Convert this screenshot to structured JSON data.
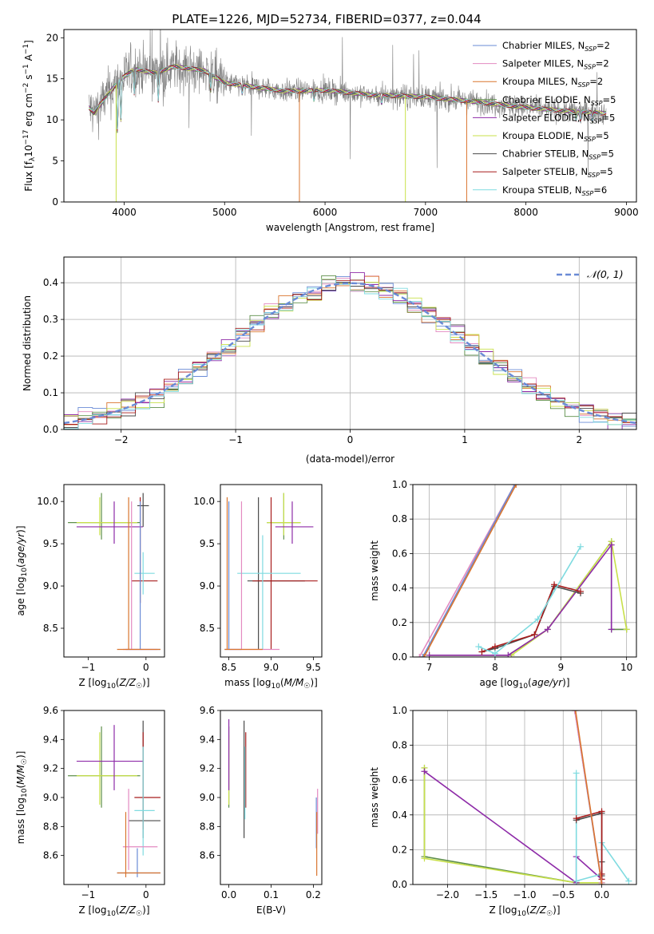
{
  "title": "PLATE=1226, MJD=52734, FIBERID=0377, z=0.044",
  "colors": {
    "Chabrier MILES": "#6a8bd6",
    "Salpeter MILES": "#e38ac0",
    "Kroupa MILES": "#d9752f",
    "Chabrier ELODIE": "#5e8f4a",
    "Salpeter ELODIE": "#8e2ba8",
    "Kroupa ELODIE": "#c8e04a",
    "Chabrier STELIB": "#4a4a4a",
    "Salpeter STELIB": "#a81c1c",
    "Kroupa STELIB": "#7fdbe0",
    "data": "#808080",
    "normal": "#6a8bd6"
  },
  "chart_data": [
    {
      "type": "line",
      "title": "PLATE=1226, MJD=52734, FIBERID=0377, z=0.044",
      "xlabel": "wavelength [Angstrom, rest frame]",
      "ylabel": "Flux [f_λ 10^-17 erg cm^-2 s^-1 A^-1]",
      "xlim": [
        3400,
        9100
      ],
      "ylim": [
        0,
        21
      ],
      "xticks": [
        "4000",
        "5000",
        "6000",
        "7000",
        "8000",
        "9000"
      ],
      "yticks": [
        "0",
        "5",
        "10",
        "15",
        "20"
      ],
      "legend": "top-right",
      "spectrum_anchors": {
        "x": [
          3650,
          3700,
          3800,
          3950,
          4100,
          4300,
          4500,
          4800,
          5000,
          5300,
          5600,
          6000,
          6500,
          7000,
          7500,
          8000,
          8500,
          8800
        ],
        "y": [
          11.5,
          10.8,
          12.5,
          14.8,
          16.2,
          15.7,
          16.5,
          16.0,
          14.5,
          14.0,
          13.5,
          13.6,
          13.0,
          12.8,
          12.2,
          11.5,
          11.0,
          10.8
        ]
      },
      "series": [
        {
          "name": "Chabrier MILES",
          "legend": "Chabrier MILES, N_SSP=2"
        },
        {
          "name": "Salpeter MILES",
          "legend": "Salpeter MILES, N_SSP=2"
        },
        {
          "name": "Kroupa MILES",
          "legend": "Kroupa MILES, N_SSP=2"
        },
        {
          "name": "Chabrier ELODIE",
          "legend": "Chabrier ELODIE, N_SSP=5"
        },
        {
          "name": "Salpeter ELODIE",
          "legend": "Salpeter ELODIE, N_SSP=5"
        },
        {
          "name": "Kroupa ELODIE",
          "legend": "Kroupa ELODIE, N_SSP=5"
        },
        {
          "name": "Chabrier STELIB",
          "legend": "Chabrier STELIB, N_SSP=5"
        },
        {
          "name": "Salpeter STELIB",
          "legend": "Salpeter STELIB, N_SSP=5"
        },
        {
          "name": "Kroupa STELIB",
          "legend": "Kroupa STELIB, N_SSP=6"
        }
      ]
    },
    {
      "type": "step-histogram",
      "xlabel": "(data-model)/error",
      "ylabel": "Normed distribution",
      "xlim": [
        -2.5,
        2.5
      ],
      "ylim": [
        0,
        0.47
      ],
      "bins": 40,
      "xticks": [
        "−2",
        "−1",
        "0",
        "1",
        "2"
      ],
      "yticks": [
        "0.0",
        "0.1",
        "0.2",
        "0.3",
        "0.4"
      ],
      "legend": "𝒩(0, 1)",
      "grid": true
    },
    {
      "type": "errorbar",
      "xlabel": "Z [log10(Z/Z☉)]",
      "ylabel": "age [log10(age/yr)]",
      "xlim": [
        -1.42,
        0.32
      ],
      "ylim": [
        8.16,
        10.2
      ],
      "xticks": [
        "−1",
        "0"
      ],
      "yticks": [
        "8.5",
        "9.0",
        "9.5",
        "10.0"
      ],
      "points": [
        {
          "series": "Chabrier ELODIE",
          "x": -0.77,
          "y": 9.75,
          "xlo": -1.35,
          "xhi": -0.1,
          "ylo": 9.55,
          "yhi": 10.1
        },
        {
          "series": "Kroupa ELODIE",
          "x": -0.8,
          "y": 9.75,
          "xlo": -1.2,
          "xhi": -0.15,
          "ylo": 9.6,
          "yhi": 10.05
        },
        {
          "series": "Salpeter ELODIE",
          "x": -0.55,
          "y": 9.7,
          "xlo": -1.2,
          "xhi": -0.05,
          "ylo": 9.5,
          "yhi": 10.0
        },
        {
          "series": "Chabrier STELIB",
          "x": -0.05,
          "y": 9.95,
          "xlo": -0.15,
          "xhi": 0.05,
          "ylo": 9.7,
          "yhi": 10.1
        },
        {
          "series": "Salpeter STELIB",
          "x": -0.1,
          "y": 9.06,
          "xlo": -0.25,
          "xhi": 0.2,
          "ylo": 8.8,
          "yhi": 10.05
        },
        {
          "series": "Kroupa STELIB",
          "x": -0.05,
          "y": 9.15,
          "xlo": -0.2,
          "xhi": 0.15,
          "ylo": 8.9,
          "yhi": 9.4
        },
        {
          "series": "Chabrier MILES",
          "x": -0.1,
          "y": 8.25,
          "xlo": -0.35,
          "xhi": 0.25,
          "ylo": 8.25,
          "yhi": 10.0
        },
        {
          "series": "Salpeter MILES",
          "x": -0.25,
          "y": 8.25,
          "xlo": -0.4,
          "xhi": 0.2,
          "ylo": 8.25,
          "yhi": 10.0
        },
        {
          "series": "Kroupa MILES",
          "x": -0.3,
          "y": 8.25,
          "xlo": -0.5,
          "xhi": 0.25,
          "ylo": 8.25,
          "yhi": 10.05
        }
      ]
    },
    {
      "type": "errorbar",
      "xlabel": "mass [log10(M/M☉)]",
      "ylabel": "",
      "xlim": [
        8.4,
        9.6
      ],
      "ylim": [
        8.16,
        10.2
      ],
      "xticks": [
        "8.5",
        "9.0",
        "9.5"
      ],
      "yticks": [
        "8.5",
        "9.0",
        "9.5",
        "10.0"
      ],
      "points": [
        {
          "series": "Chabrier ELODIE",
          "x": 9.15,
          "y": 9.75,
          "xlo": 8.95,
          "xhi": 9.35,
          "ylo": 9.55,
          "yhi": 10.1
        },
        {
          "series": "Kroupa ELODIE",
          "x": 9.15,
          "y": 9.75,
          "xlo": 8.95,
          "xhi": 9.35,
          "ylo": 9.6,
          "yhi": 10.1
        },
        {
          "series": "Salpeter ELODIE",
          "x": 9.25,
          "y": 9.7,
          "xlo": 9.05,
          "xhi": 9.5,
          "ylo": 9.5,
          "yhi": 10.0
        },
        {
          "series": "Chabrier STELIB",
          "x": 8.85,
          "y": 9.06,
          "xlo": 8.72,
          "xhi": 9.4,
          "ylo": 8.25,
          "yhi": 10.05
        },
        {
          "series": "Salpeter STELIB",
          "x": 9.0,
          "y": 9.06,
          "xlo": 8.78,
          "xhi": 9.55,
          "ylo": 8.25,
          "yhi": 10.05
        },
        {
          "series": "Kroupa STELIB",
          "x": 8.9,
          "y": 9.15,
          "xlo": 8.6,
          "xhi": 9.35,
          "ylo": 8.25,
          "yhi": 9.6
        },
        {
          "series": "Chabrier MILES",
          "x": 8.5,
          "y": 8.25,
          "xlo": 8.45,
          "xhi": 8.65,
          "ylo": 8.25,
          "yhi": 10.0
        },
        {
          "series": "Salpeter MILES",
          "x": 8.65,
          "y": 8.25,
          "xlo": 8.5,
          "xhi": 9.1,
          "ylo": 8.25,
          "yhi": 10.0
        },
        {
          "series": "Kroupa MILES",
          "x": 8.48,
          "y": 8.25,
          "xlo": 8.45,
          "xhi": 8.9,
          "ylo": 8.25,
          "yhi": 10.05
        }
      ]
    },
    {
      "type": "line",
      "xlabel": "age [log10(age/yr)]",
      "ylabel": "mass weight",
      "xlim": [
        6.75,
        10.15
      ],
      "ylim": [
        0,
        1
      ],
      "xticks": [
        "7",
        "8",
        "9",
        "10"
      ],
      "yticks": [
        "0.0",
        "0.2",
        "0.4",
        "0.6",
        "0.8",
        "1.0"
      ],
      "grid": true,
      "series": [
        {
          "series": "Salpeter MILES",
          "x": [
            6.85,
            8.3
          ],
          "y": [
            0.0,
            1.0
          ]
        },
        {
          "series": "Chabrier MILES",
          "x": [
            6.9,
            8.3
          ],
          "y": [
            0.0,
            1.0
          ]
        },
        {
          "series": "Kroupa MILES",
          "x": [
            6.92,
            8.32
          ],
          "y": [
            0.0,
            1.0
          ]
        },
        {
          "series": "Chabrier ELODIE",
          "x": [
            7.0,
            8.2,
            8.8,
            9.77,
            9.77,
            10.0
          ],
          "y": [
            0.01,
            0.01,
            0.16,
            0.67,
            0.16,
            0.16
          ]
        },
        {
          "series": "Kroupa ELODIE",
          "x": [
            7.0,
            8.25,
            8.8,
            9.77,
            10.0
          ],
          "y": [
            0.01,
            0.01,
            0.16,
            0.67,
            0.16
          ]
        },
        {
          "series": "Salpeter ELODIE",
          "x": [
            7.0,
            8.2,
            8.8,
            9.77,
            9.77
          ],
          "y": [
            0.01,
            0.01,
            0.16,
            0.65,
            0.16
          ]
        },
        {
          "series": "Chabrier STELIB",
          "x": [
            7.8,
            8.0,
            8.6,
            8.9,
            9.3
          ],
          "y": [
            0.03,
            0.05,
            0.13,
            0.41,
            0.37
          ]
        },
        {
          "series": "Salpeter STELIB",
          "x": [
            7.8,
            8.0,
            8.6,
            8.9,
            9.3
          ],
          "y": [
            0.03,
            0.06,
            0.13,
            0.42,
            0.38
          ]
        },
        {
          "series": "Kroupa STELIB",
          "x": [
            7.75,
            8.0,
            8.65,
            9.3
          ],
          "y": [
            0.06,
            0.02,
            0.22,
            0.64
          ]
        }
      ]
    },
    {
      "type": "errorbar",
      "xlabel": "Z [log10(Z/Z☉)]",
      "ylabel": "mass [log10(M/M☉)]",
      "xlim": [
        -1.42,
        0.32
      ],
      "ylim": [
        8.4,
        9.6
      ],
      "xticks": [
        "−1",
        "0"
      ],
      "yticks": [
        "8.6",
        "8.8",
        "9.0",
        "9.2",
        "9.4",
        "9.6"
      ],
      "points": [
        {
          "series": "Chabrier ELODIE",
          "x": -0.77,
          "y": 9.15,
          "xlo": -1.35,
          "xhi": -0.1,
          "ylo": 8.93,
          "yhi": 9.49
        },
        {
          "series": "Kroupa ELODIE",
          "x": -0.8,
          "y": 9.15,
          "xlo": -1.2,
          "xhi": -0.15,
          "ylo": 8.95,
          "yhi": 9.45
        },
        {
          "series": "Salpeter ELODIE",
          "x": -0.55,
          "y": 9.25,
          "xlo": -1.2,
          "xhi": -0.05,
          "ylo": 9.05,
          "yhi": 9.5
        },
        {
          "series": "Chabrier STELIB",
          "x": -0.05,
          "y": 8.84,
          "xlo": -0.3,
          "xhi": 0.25,
          "ylo": 8.72,
          "yhi": 9.53
        },
        {
          "series": "Salpeter STELIB",
          "x": -0.05,
          "y": 9.0,
          "xlo": -0.2,
          "xhi": 0.25,
          "ylo": 8.78,
          "yhi": 9.45
        },
        {
          "series": "Kroupa STELIB",
          "x": -0.05,
          "y": 8.91,
          "xlo": -0.2,
          "xhi": 0.15,
          "ylo": 8.6,
          "yhi": 9.35
        },
        {
          "series": "Chabrier MILES",
          "x": -0.15,
          "y": 8.48,
          "xlo": -0.5,
          "xhi": 0.25,
          "ylo": 8.45,
          "yhi": 8.65
        },
        {
          "series": "Salpeter MILES",
          "x": -0.3,
          "y": 8.66,
          "xlo": -0.4,
          "xhi": 0.2,
          "ylo": 8.5,
          "yhi": 9.06
        },
        {
          "series": "Kroupa MILES",
          "x": -0.35,
          "y": 8.48,
          "xlo": -0.5,
          "xhi": 0.25,
          "ylo": 8.45,
          "yhi": 8.9
        }
      ]
    },
    {
      "type": "errorbar",
      "xlabel": "E(B-V)",
      "ylabel": "",
      "xlim": [
        -0.02,
        0.22
      ],
      "ylim": [
        8.4,
        9.6
      ],
      "xticks": [
        "0.0",
        "0.1",
        "0.2"
      ],
      "yticks": [
        "8.6",
        "8.8",
        "9.0",
        "9.2",
        "9.4",
        "9.6"
      ],
      "points": [
        {
          "series": "Chabrier ELODIE",
          "x": 0.0,
          "y": 9.15,
          "ylo": 8.93,
          "yhi": 9.49
        },
        {
          "series": "Kroupa ELODIE",
          "x": 0.0,
          "y": 9.15,
          "ylo": 8.95,
          "yhi": 9.43
        },
        {
          "series": "Salpeter ELODIE",
          "x": 0.0,
          "y": 9.25,
          "ylo": 9.05,
          "yhi": 9.54
        },
        {
          "series": "Chabrier STELIB",
          "x": 0.036,
          "y": 9.0,
          "ylo": 8.72,
          "yhi": 9.53
        },
        {
          "series": "Salpeter STELIB",
          "x": 0.04,
          "y": 9.1,
          "ylo": 8.93,
          "yhi": 9.45
        },
        {
          "series": "Kroupa STELIB",
          "x": 0.038,
          "y": 9.1,
          "ylo": 8.85,
          "yhi": 9.35
        },
        {
          "series": "Chabrier MILES",
          "x": 0.207,
          "y": 8.85,
          "ylo": 8.65,
          "yhi": 9.0
        },
        {
          "series": "Salpeter MILES",
          "x": 0.21,
          "y": 8.9,
          "ylo": 8.75,
          "yhi": 9.06
        },
        {
          "series": "Kroupa MILES",
          "x": 0.208,
          "y": 8.7,
          "ylo": 8.46,
          "yhi": 8.9
        }
      ]
    },
    {
      "type": "line",
      "xlabel": "Z [log10(Z/Z☉)]",
      "ylabel": "mass weight",
      "xlim": [
        -2.45,
        0.45
      ],
      "ylim": [
        0,
        1
      ],
      "xticks": [
        "−2.0",
        "−1.5",
        "−1.0",
        "−0.5",
        "0.0"
      ],
      "yticks": [
        "0.0",
        "0.2",
        "0.4",
        "0.6",
        "0.8",
        "1.0"
      ],
      "grid": true,
      "series": [
        {
          "series": "Chabrier ELODIE",
          "x": [
            -2.3,
            -2.3,
            -0.33,
            0.0
          ],
          "y": [
            0.67,
            0.16,
            0.01,
            0.01
          ]
        },
        {
          "series": "Kroupa ELODIE",
          "x": [
            -2.3,
            -2.3,
            -0.33,
            0.0
          ],
          "y": [
            0.67,
            0.15,
            0.01,
            0.01
          ]
        },
        {
          "series": "Salpeter ELODIE",
          "x": [
            -2.3,
            -0.33,
            -0.33,
            0.0
          ],
          "y": [
            0.65,
            0.01,
            0.16,
            0.03
          ]
        },
        {
          "series": "Kroupa STELIB",
          "x": [
            -0.33,
            -0.33,
            0.0,
            0.0,
            0.35
          ],
          "y": [
            0.64,
            0.02,
            0.06,
            0.24,
            0.02
          ]
        },
        {
          "series": "Chabrier STELIB",
          "x": [
            -0.33,
            0.0,
            0.0,
            0.0
          ],
          "y": [
            0.37,
            0.41,
            0.13,
            0.05
          ]
        },
        {
          "series": "Salpeter STELIB",
          "x": [
            -0.33,
            0.0,
            0.0,
            0.0
          ],
          "y": [
            0.38,
            0.42,
            0.06,
            0.03
          ]
        },
        {
          "series": "Chabrier MILES",
          "x": [
            -0.35,
            0.0
          ],
          "y": [
            1.0,
            0.0
          ]
        },
        {
          "series": "Salpeter MILES",
          "x": [
            -0.35,
            0.0
          ],
          "y": [
            1.0,
            0.01
          ]
        },
        {
          "series": "Kroupa MILES",
          "x": [
            -0.34,
            0.0
          ],
          "y": [
            1.0,
            0.0
          ]
        }
      ]
    }
  ]
}
